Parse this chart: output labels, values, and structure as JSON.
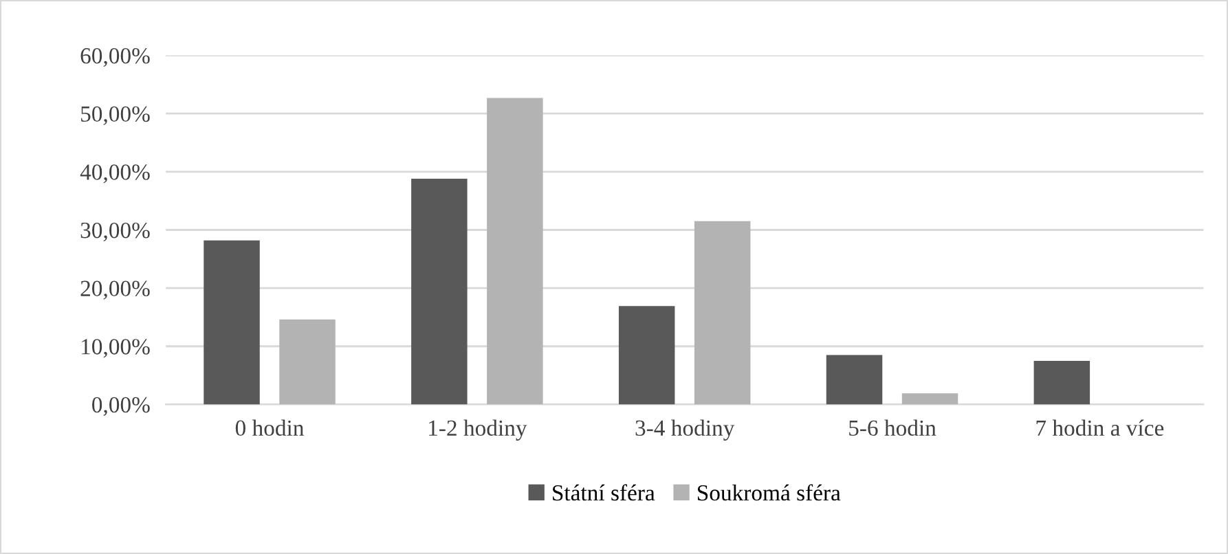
{
  "chart_data": {
    "type": "bar",
    "categories": [
      "0 hodin",
      "1-2 hodiny",
      "3-4 hodiny",
      "5-6 hodin",
      "7 hodin a více"
    ],
    "series": [
      {
        "name": "Státní sféra",
        "color": "#595959",
        "values": [
          28.2,
          38.8,
          16.9,
          8.5,
          7.5
        ]
      },
      {
        "name": "Soukromá sféra",
        "color": "#b3b3b3",
        "values": [
          14.6,
          52.7,
          31.5,
          1.9,
          0
        ]
      }
    ],
    "ylim": [
      0,
      60
    ],
    "yticks": [
      {
        "value": 0,
        "label": "0,00%"
      },
      {
        "value": 10,
        "label": "10,00%"
      },
      {
        "value": 20,
        "label": "20,00%"
      },
      {
        "value": 30,
        "label": "30,00%"
      },
      {
        "value": 40,
        "label": "40,00%"
      },
      {
        "value": 50,
        "label": "50,00%"
      },
      {
        "value": 60,
        "label": "60,00%"
      }
    ],
    "grid": "y",
    "legend": "bottom"
  }
}
